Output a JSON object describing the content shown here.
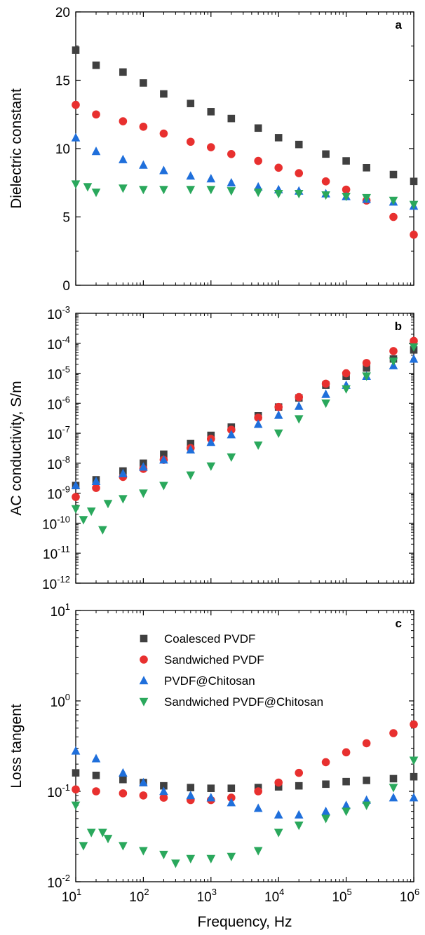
{
  "colors": {
    "coalesced": "#404040",
    "sandwiched": "#e8302f",
    "chitosan": "#1f6fdb",
    "sandwiched_chitosan": "#2aa85c"
  },
  "chart_data": [
    {
      "panel": "a",
      "type": "scatter",
      "xscale": "log",
      "xlim": [
        10,
        1000000
      ],
      "ylim": [
        0,
        20
      ],
      "yscale": "linear",
      "ylabel": "Dielectric constant",
      "xlabel": "",
      "yticks": [
        "0",
        "5",
        "10",
        "15",
        "20"
      ],
      "grid": false,
      "series": [
        {
          "name": "Coalesced PVDF",
          "marker": "square",
          "color": "#404040",
          "x": [
            10,
            20,
            50,
            100,
            200,
            500,
            1000,
            2000,
            5000,
            10000,
            20000,
            50000,
            100000,
            200000,
            500000,
            1000000
          ],
          "y": [
            17.2,
            16.1,
            15.6,
            14.8,
            14.0,
            13.3,
            12.7,
            12.2,
            11.5,
            10.8,
            10.3,
            9.6,
            9.1,
            8.6,
            8.1,
            7.6
          ]
        },
        {
          "name": "Sandwiched PVDF",
          "marker": "circle",
          "color": "#e8302f",
          "x": [
            10,
            20,
            50,
            100,
            200,
            500,
            1000,
            2000,
            5000,
            10000,
            20000,
            50000,
            100000,
            200000,
            500000,
            1000000
          ],
          "y": [
            13.2,
            12.5,
            12.0,
            11.6,
            11.1,
            10.5,
            10.1,
            9.6,
            9.1,
            8.6,
            8.2,
            7.6,
            7.0,
            6.2,
            5.0,
            3.7
          ]
        },
        {
          "name": "PVDF@Chitosan",
          "marker": "triangle-up",
          "color": "#1f6fdb",
          "x": [
            10,
            20,
            50,
            100,
            200,
            500,
            1000,
            2000,
            5000,
            10000,
            20000,
            50000,
            100000,
            200000,
            500000,
            1000000
          ],
          "y": [
            10.8,
            9.8,
            9.2,
            8.8,
            8.4,
            8.0,
            7.8,
            7.5,
            7.2,
            7.0,
            6.9,
            6.7,
            6.5,
            6.3,
            6.1,
            5.8
          ]
        },
        {
          "name": "Sandwiched PVDF@Chitosan",
          "marker": "triangle-down",
          "color": "#2aa85c",
          "x": [
            10,
            15,
            20,
            50,
            100,
            200,
            500,
            1000,
            2000,
            5000,
            10000,
            20000,
            50000,
            100000,
            200000,
            500000,
            1000000
          ],
          "y": [
            7.4,
            7.2,
            6.8,
            7.1,
            7.0,
            7.0,
            7.0,
            7.0,
            6.9,
            6.8,
            6.7,
            6.7,
            6.6,
            6.5,
            6.4,
            6.2,
            5.9
          ]
        }
      ]
    },
    {
      "panel": "b",
      "type": "scatter",
      "xscale": "log",
      "yscale": "log",
      "xlim": [
        10,
        1000000
      ],
      "ylim": [
        1e-12,
        0.001
      ],
      "ylabel": "AC conductivity, S/m",
      "xlabel": "",
      "ytick_exponents": [
        "-12",
        "-11",
        "-10",
        "-9",
        "-8",
        "-7",
        "-6",
        "-5",
        "-4",
        "-3"
      ],
      "ytick_base": "10",
      "grid": false,
      "series": [
        {
          "name": "Coalesced PVDF",
          "marker": "square",
          "color": "#404040",
          "x": [
            10,
            20,
            50,
            100,
            200,
            500,
            1000,
            2000,
            5000,
            10000,
            20000,
            50000,
            100000,
            200000,
            500000,
            1000000
          ],
          "y": [
            1.8e-09,
            2.8e-09,
            5.5e-09,
            1e-08,
            2e-08,
            4.5e-08,
            8.5e-08,
            1.6e-07,
            3.8e-07,
            7.5e-07,
            1.5e-06,
            4e-06,
            8e-06,
            1.5e-05,
            3e-05,
            6e-05
          ]
        },
        {
          "name": "Sandwiched PVDF",
          "marker": "circle",
          "color": "#e8302f",
          "x": [
            10,
            20,
            50,
            100,
            200,
            500,
            1000,
            2000,
            5000,
            10000,
            20000,
            50000,
            100000,
            200000,
            500000,
            1000000
          ],
          "y": [
            7.5e-10,
            1.5e-09,
            3.5e-09,
            6.5e-09,
            1.3e-08,
            3.2e-08,
            6.5e-08,
            1.3e-07,
            3.3e-07,
            7.5e-07,
            1.6e-06,
            4.5e-06,
            1e-05,
            2.2e-05,
            5.5e-05,
            0.00012
          ]
        },
        {
          "name": "PVDF@Chitosan",
          "marker": "triangle-up",
          "color": "#1f6fdb",
          "x": [
            10,
            20,
            50,
            100,
            200,
            500,
            1000,
            2000,
            5000,
            10000,
            20000,
            50000,
            100000,
            200000,
            500000,
            1000000
          ],
          "y": [
            1.8e-09,
            2.5e-09,
            4.5e-09,
            7.5e-09,
            1.3e-08,
            2.8e-08,
            5e-08,
            9e-08,
            2e-07,
            4e-07,
            8e-07,
            2e-06,
            4e-06,
            8e-06,
            1.8e-05,
            3e-05
          ]
        },
        {
          "name": "Sandwiched PVDF@Chitosan",
          "marker": "triangle-down",
          "color": "#2aa85c",
          "x": [
            10,
            13,
            17,
            25,
            30,
            50,
            100,
            200,
            500,
            1000,
            2000,
            5000,
            10000,
            20000,
            50000,
            100000,
            200000,
            500000,
            1000000
          ],
          "y": [
            3e-10,
            1.3e-10,
            2.5e-10,
            6e-11,
            4.5e-10,
            6.5e-10,
            1e-09,
            1.8e-09,
            4e-09,
            8e-09,
            1.6e-08,
            4e-08,
            1e-07,
            3e-07,
            1e-06,
            3e-06,
            8e-06,
            2.5e-05,
            7.5e-05
          ]
        }
      ]
    },
    {
      "panel": "c",
      "type": "scatter",
      "xscale": "log",
      "yscale": "log",
      "xlim": [
        10,
        1000000
      ],
      "ylim": [
        0.01,
        10
      ],
      "ylabel": "Loss tangent",
      "xlabel": "Frequency, Hz",
      "xtick_exponents": [
        "1",
        "2",
        "3",
        "4",
        "5",
        "6"
      ],
      "ytick_exponents": [
        "-2",
        "-1",
        "0",
        "1"
      ],
      "tick_base": "10",
      "grid": false,
      "legend_position": "top-center",
      "series": [
        {
          "name": "Coalesced PVDF",
          "marker": "square",
          "color": "#404040",
          "x": [
            10,
            20,
            50,
            100,
            200,
            500,
            1000,
            2000,
            5000,
            10000,
            20000,
            50000,
            100000,
            200000,
            500000,
            1000000
          ],
          "y": [
            0.16,
            0.15,
            0.135,
            0.125,
            0.115,
            0.11,
            0.108,
            0.108,
            0.11,
            0.112,
            0.115,
            0.12,
            0.128,
            0.132,
            0.138,
            0.145
          ]
        },
        {
          "name": "Sandwiched PVDF",
          "marker": "circle",
          "color": "#e8302f",
          "x": [
            10,
            20,
            50,
            100,
            200,
            500,
            1000,
            2000,
            5000,
            10000,
            20000,
            50000,
            100000,
            200000,
            500000,
            1000000
          ],
          "y": [
            0.105,
            0.1,
            0.095,
            0.09,
            0.085,
            0.08,
            0.08,
            0.085,
            0.1,
            0.125,
            0.16,
            0.21,
            0.27,
            0.34,
            0.44,
            0.55
          ]
        },
        {
          "name": "PVDF@Chitosan",
          "marker": "triangle-up",
          "color": "#1f6fdb",
          "x": [
            10,
            20,
            50,
            100,
            200,
            500,
            1000,
            2000,
            5000,
            10000,
            20000,
            50000,
            100000,
            200000,
            500000,
            1000000
          ],
          "y": [
            0.28,
            0.23,
            0.16,
            0.125,
            0.1,
            0.09,
            0.085,
            0.075,
            0.065,
            0.055,
            0.055,
            0.06,
            0.07,
            0.08,
            0.085,
            0.085
          ]
        },
        {
          "name": "Sandwiched PVDF@Chitosan",
          "marker": "triangle-down",
          "color": "#2aa85c",
          "x": [
            10,
            13,
            17,
            25,
            30,
            50,
            100,
            200,
            300,
            500,
            1000,
            2000,
            5000,
            10000,
            20000,
            50000,
            100000,
            200000,
            500000,
            1000000
          ],
          "y": [
            0.07,
            0.025,
            0.035,
            0.035,
            0.03,
            0.025,
            0.022,
            0.02,
            0.016,
            0.018,
            0.018,
            0.019,
            0.022,
            0.035,
            0.042,
            0.05,
            0.06,
            0.07,
            0.11,
            0.22
          ]
        }
      ]
    }
  ]
}
